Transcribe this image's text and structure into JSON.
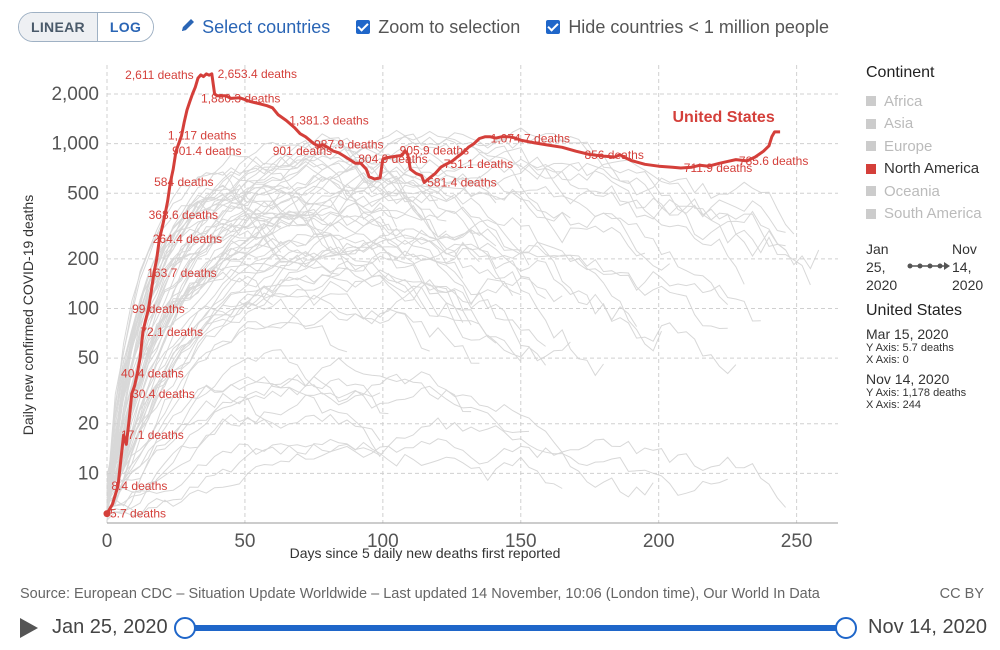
{
  "toolbar": {
    "linear_label": "LINEAR",
    "log_label": "LOG",
    "select_countries_label": "Select countries",
    "zoom_label": "Zoom to selection",
    "hide_label": "Hide countries < 1 million people"
  },
  "colors": {
    "highlight": "#d43f3a",
    "background_lines": "#d8d8d8",
    "accent": "#1f66c9"
  },
  "legend": {
    "title": "Continent",
    "items": [
      {
        "label": "Africa",
        "active": false
      },
      {
        "label": "Asia",
        "active": false
      },
      {
        "label": "Europe",
        "active": false
      },
      {
        "label": "North America",
        "active": true
      },
      {
        "label": "Oceania",
        "active": false
      },
      {
        "label": "South America",
        "active": false
      }
    ]
  },
  "range": {
    "start_month": "Jan",
    "start_day": "25,",
    "start_year": "2020",
    "end_month": "Nov",
    "end_day": "14,",
    "end_year": "2020"
  },
  "info": {
    "title": "United States",
    "start_date": "Mar 15, 2020",
    "start_y": "Y Axis: 5.7 deaths",
    "start_x": "X Axis: 0",
    "end_date": "Nov 14, 2020",
    "end_y": "Y Axis: 1,178 deaths",
    "end_x": "X Axis: 244"
  },
  "source": "Source: European CDC – Situation Update Worldwide – Last updated 14 November, 10:06 (London time), Our World In Data",
  "license": "CC BY",
  "timeline": {
    "start": "Jan 25, 2020",
    "end": "Nov 14, 2020"
  },
  "chart_data": {
    "type": "line",
    "xlabel": "Days since 5 daily new deaths first reported",
    "ylabel": "Daily new confirmed COVID-19 deaths",
    "y_scale": "log",
    "xlim": [
      0,
      265
    ],
    "ylim": [
      5,
      3000
    ],
    "x_ticks": [
      "0",
      "50",
      "100",
      "150",
      "200",
      "250"
    ],
    "y_ticks": [
      {
        "v": 10,
        "label": "10"
      },
      {
        "v": 20,
        "label": "20"
      },
      {
        "v": 50,
        "label": "50"
      },
      {
        "v": 100,
        "label": "100"
      },
      {
        "v": 200,
        "label": "200"
      },
      {
        "v": 500,
        "label": "500"
      },
      {
        "v": 1000,
        "label": "1,000"
      },
      {
        "v": 2000,
        "label": "2,000"
      }
    ],
    "grid": true,
    "highlight_series": {
      "name": "United States",
      "points": [
        [
          0,
          5.7
        ],
        [
          2,
          6.5
        ],
        [
          4,
          8.4
        ],
        [
          5,
          12
        ],
        [
          6,
          17.1
        ],
        [
          7,
          15
        ],
        [
          8,
          21
        ],
        [
          9,
          30.4
        ],
        [
          10,
          34
        ],
        [
          11,
          40.4
        ],
        [
          12,
          50
        ],
        [
          13,
          72.1
        ],
        [
          14,
          85
        ],
        [
          15,
          99
        ],
        [
          16,
          125
        ],
        [
          17,
          163.7
        ],
        [
          18,
          200
        ],
        [
          19,
          264.4
        ],
        [
          20,
          310
        ],
        [
          21,
          368.6
        ],
        [
          22,
          450
        ],
        [
          23,
          584
        ],
        [
          24,
          700
        ],
        [
          25,
          901.4
        ],
        [
          26,
          1000
        ],
        [
          27,
          1117
        ],
        [
          28,
          1350
        ],
        [
          29,
          1600
        ],
        [
          30,
          1800
        ],
        [
          31,
          2000
        ],
        [
          32,
          2200
        ],
        [
          33,
          2500
        ],
        [
          34,
          2611
        ],
        [
          35,
          2550
        ],
        [
          36,
          2650
        ],
        [
          37,
          2600
        ],
        [
          38,
          2653.4
        ],
        [
          39,
          2000
        ],
        [
          40,
          1950
        ],
        [
          43,
          1950
        ],
        [
          45,
          1880.3
        ],
        [
          48,
          1900
        ],
        [
          50,
          1850
        ],
        [
          52,
          1800
        ],
        [
          55,
          1750
        ],
        [
          58,
          1700
        ],
        [
          60,
          1650
        ],
        [
          62,
          1500
        ],
        [
          65,
          1381.3
        ],
        [
          68,
          1250
        ],
        [
          70,
          1150
        ],
        [
          72,
          1100
        ],
        [
          75,
          1000
        ],
        [
          77,
          960
        ],
        [
          78,
          987.9
        ],
        [
          80,
          950
        ],
        [
          82,
          901
        ],
        [
          84,
          880
        ],
        [
          86,
          840
        ],
        [
          88,
          800
        ],
        [
          90,
          760
        ],
        [
          92,
          760
        ],
        [
          94,
          700
        ],
        [
          95,
          630
        ],
        [
          97,
          610
        ],
        [
          99,
          620
        ],
        [
          100,
          804.9
        ],
        [
          101,
          820
        ],
        [
          103,
          830
        ],
        [
          105,
          840
        ],
        [
          107,
          850
        ],
        [
          108,
          905.9
        ],
        [
          109,
          860
        ],
        [
          110,
          700
        ],
        [
          112,
          660
        ],
        [
          114,
          640
        ],
        [
          115,
          581.4
        ],
        [
          117,
          620
        ],
        [
          119,
          660
        ],
        [
          121,
          720
        ],
        [
          123,
          751.1
        ],
        [
          125,
          780
        ],
        [
          127,
          830
        ],
        [
          129,
          880
        ],
        [
          131,
          950
        ],
        [
          133,
          1000
        ],
        [
          135,
          1074.7
        ],
        [
          137,
          1100
        ],
        [
          139,
          1100
        ],
        [
          141,
          1080
        ],
        [
          143,
          1100
        ],
        [
          146,
          1100
        ],
        [
          148,
          1080
        ],
        [
          150,
          1050
        ],
        [
          155,
          1010
        ],
        [
          160,
          980
        ],
        [
          165,
          950
        ],
        [
          170,
          900
        ],
        [
          175,
          860
        ],
        [
          180,
          840
        ],
        [
          184,
          830
        ],
        [
          186,
          856
        ],
        [
          188,
          820
        ],
        [
          190,
          790
        ],
        [
          195,
          750
        ],
        [
          200,
          730
        ],
        [
          205,
          720
        ],
        [
          208,
          711.9
        ],
        [
          212,
          720
        ],
        [
          215,
          740
        ],
        [
          218,
          730
        ],
        [
          222,
          760
        ],
        [
          225,
          780
        ],
        [
          228,
          800
        ],
        [
          232,
          785.6
        ],
        [
          235,
          830
        ],
        [
          238,
          900
        ],
        [
          240,
          970
        ],
        [
          241,
          1100
        ],
        [
          242,
          1178
        ],
        [
          244,
          1178
        ]
      ],
      "labels": [
        {
          "x": 0,
          "y": 5.7,
          "text": "5.7 deaths"
        },
        {
          "x": 0.5,
          "y": 8.4,
          "text": "8.4 deaths"
        },
        {
          "x": 4,
          "y": 17.1,
          "text": "17.1 deaths"
        },
        {
          "x": 8,
          "y": 30.4,
          "text": "30.4 deaths"
        },
        {
          "x": 4,
          "y": 40.4,
          "text": "40.4 deaths"
        },
        {
          "x": 11,
          "y": 72.1,
          "text": "72.1 deaths"
        },
        {
          "x": 8,
          "y": 99,
          "text": "99 deaths"
        },
        {
          "x": 13.5,
          "y": 163.7,
          "text": "163.7 deaths"
        },
        {
          "x": 15.5,
          "y": 264.4,
          "text": "264.4 deaths"
        },
        {
          "x": 14,
          "y": 368.6,
          "text": "368.6 deaths"
        },
        {
          "x": 16,
          "y": 584,
          "text": "584 deaths"
        },
        {
          "x": 22.5,
          "y": 901.4,
          "text": "901.4 deaths"
        },
        {
          "x": 21,
          "y": 1117,
          "text": "1,117 deaths"
        },
        {
          "x": 5.5,
          "y": 2611,
          "text": "2,611 deaths"
        },
        {
          "x": 39,
          "y": 2653.4,
          "text": "2,653.4 deaths"
        },
        {
          "x": 33,
          "y": 1880.3,
          "text": "1,880.3 deaths"
        },
        {
          "x": 65,
          "y": 1381.3,
          "text": "1,381.3 deaths"
        },
        {
          "x": 74,
          "y": 987.9,
          "text": "987.9 deaths"
        },
        {
          "x": 59,
          "y": 901,
          "text": "901 deaths"
        },
        {
          "x": 90,
          "y": 804.9,
          "text": "804.9 deaths"
        },
        {
          "x": 105,
          "y": 905.9,
          "text": "905.9 deaths"
        },
        {
          "x": 115,
          "y": 581.4,
          "text": "581.4 deaths"
        },
        {
          "x": 121,
          "y": 751.1,
          "text": "751.1 deaths"
        },
        {
          "x": 138,
          "y": 1074.7,
          "text": "1,074.7 deaths"
        },
        {
          "x": 172,
          "y": 856,
          "text": "856 deaths"
        },
        {
          "x": 208,
          "y": 711.9,
          "text": "711.9 deaths"
        },
        {
          "x": 228,
          "y": 785.6,
          "text": "785.6 deaths"
        }
      ],
      "series_label": {
        "x": 205,
        "y": 1350,
        "text": "United States"
      }
    }
  }
}
